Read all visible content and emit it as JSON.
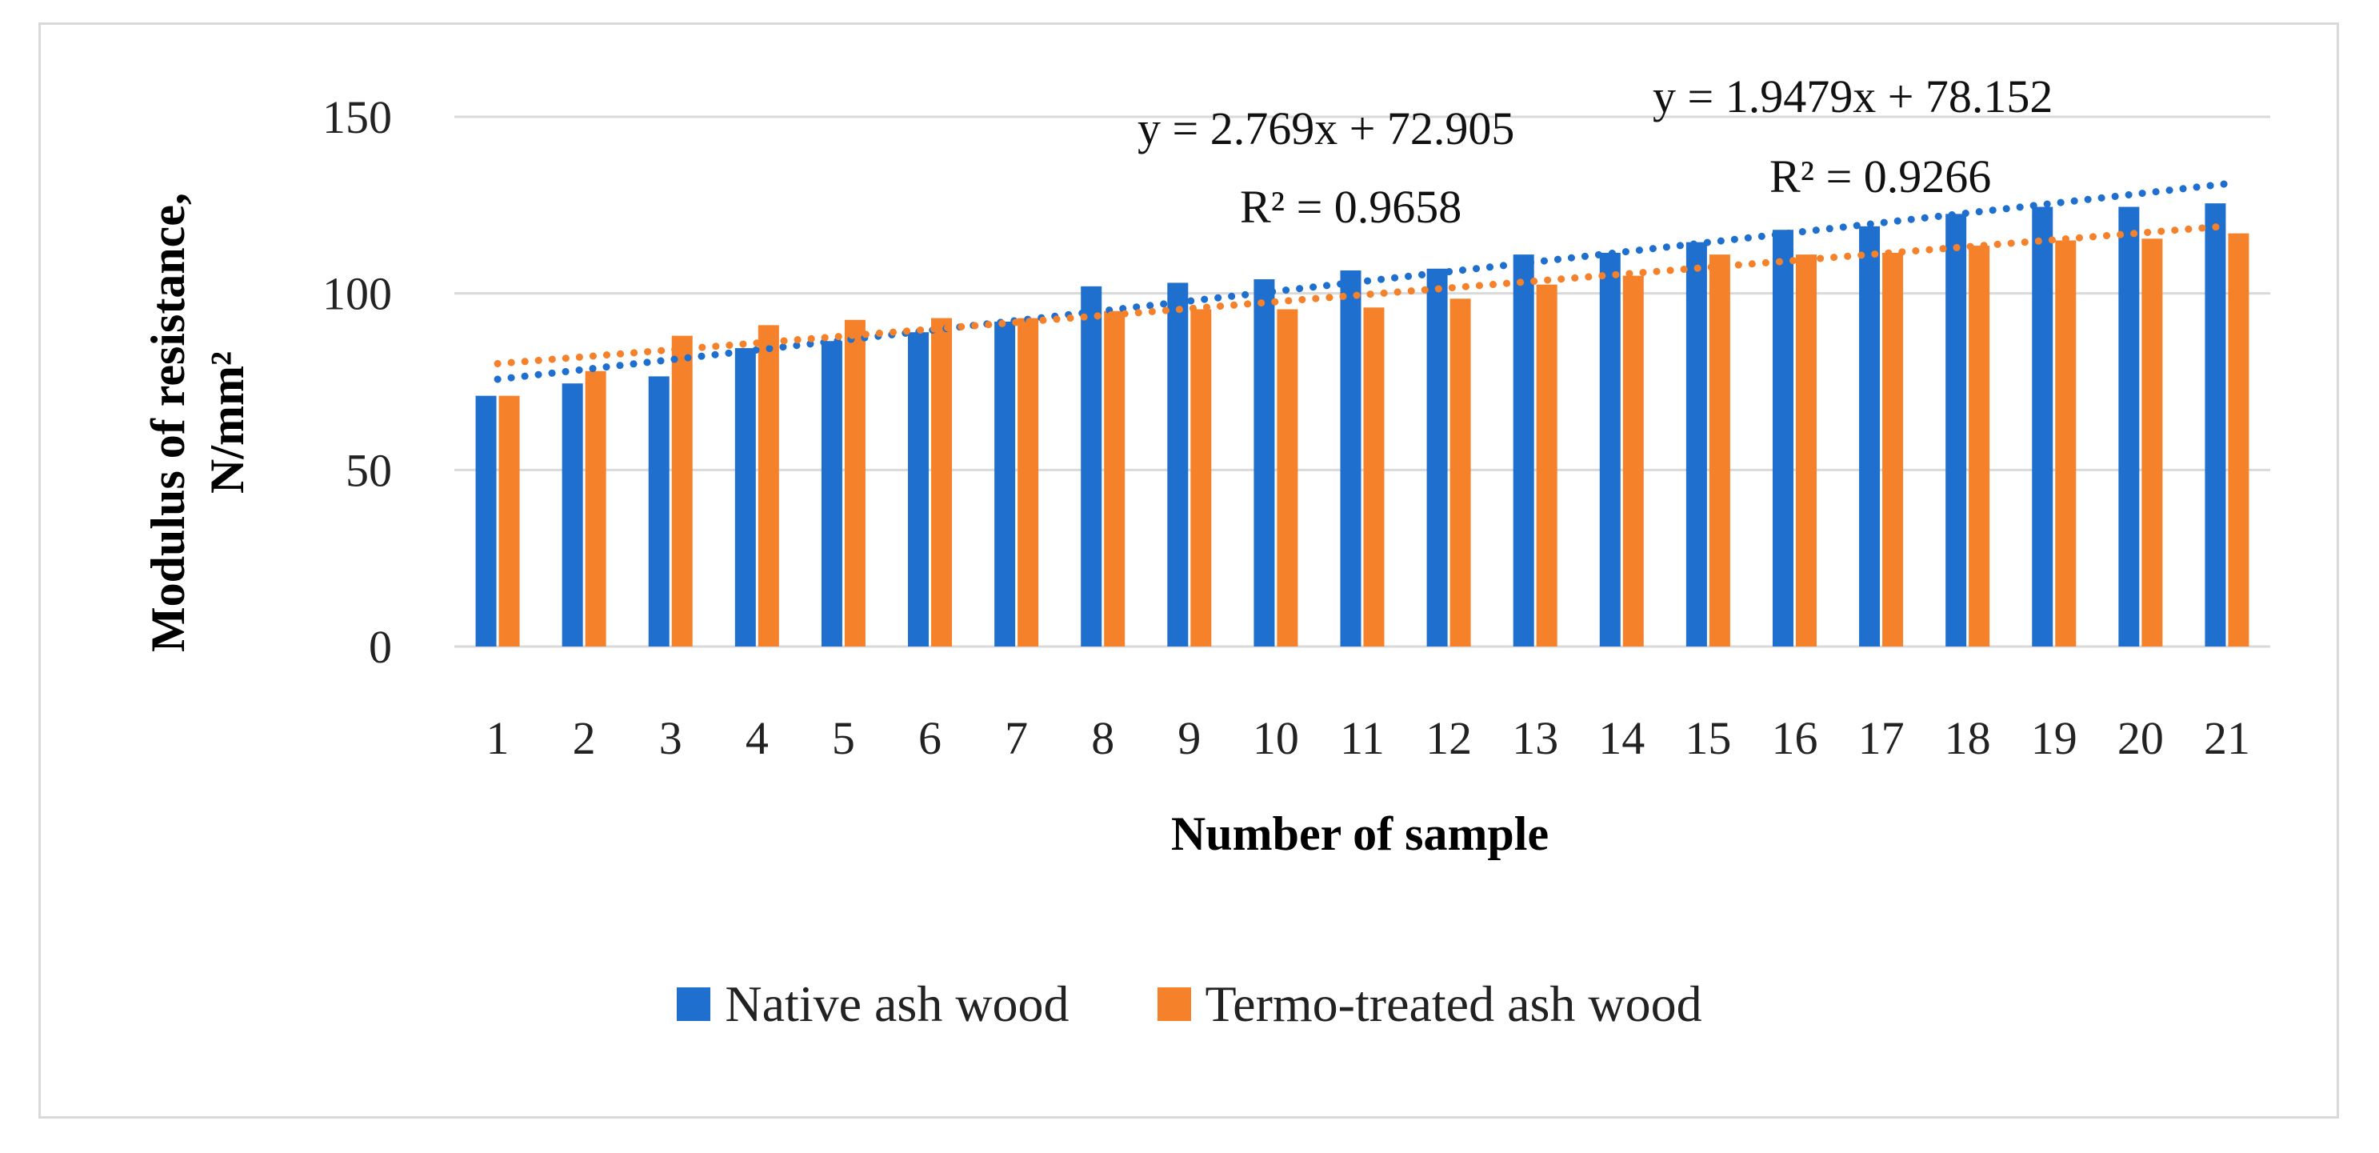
{
  "chart_data": {
    "type": "bar",
    "xlabel": "Number of sample",
    "ylabel": "Modulus of resistance, N/mm²",
    "ylabel_lines": [
      "Modulus of resistance,",
      "N/mm²"
    ],
    "ylim": [
      0,
      150
    ],
    "yticks": [
      0,
      50,
      100,
      150
    ],
    "grid": true,
    "legend_position": "bottom",
    "categories": [
      "1",
      "2",
      "3",
      "4",
      "5",
      "6",
      "7",
      "8",
      "9",
      "10",
      "11",
      "12",
      "13",
      "14",
      "15",
      "16",
      "17",
      "18",
      "19",
      "20",
      "21"
    ],
    "series": [
      {
        "name": "Native ash wood",
        "color": "#1f6fcf",
        "values": [
          71,
          74.5,
          76.5,
          84.5,
          86.5,
          89,
          92,
          102,
          103,
          104,
          106.5,
          107,
          111,
          111.5,
          114.5,
          118,
          119,
          122.5,
          124.5,
          124.5,
          125.5
        ]
      },
      {
        "name": "Termo-treated ash wood",
        "color": "#f5812a",
        "values": [
          71,
          78,
          88,
          91,
          92.5,
          93,
          93,
          95,
          95.5,
          95.5,
          96,
          98.5,
          102.5,
          105,
          111,
          111,
          111.5,
          113.5,
          115,
          115.5,
          117
        ]
      }
    ],
    "trendlines": [
      {
        "series": "Native ash wood",
        "color": "#1f6fcf",
        "slope": 2.769,
        "intercept": 72.905,
        "equation": "y = 2.769x + 72.905",
        "r2": "R² = 0.9658"
      },
      {
        "series": "Termo-treated ash wood",
        "color": "#f5812a",
        "slope": 1.9479,
        "intercept": 78.152,
        "equation": "y = 1.9479x + 78.152",
        "r2": "R² = 0.9266"
      }
    ]
  }
}
